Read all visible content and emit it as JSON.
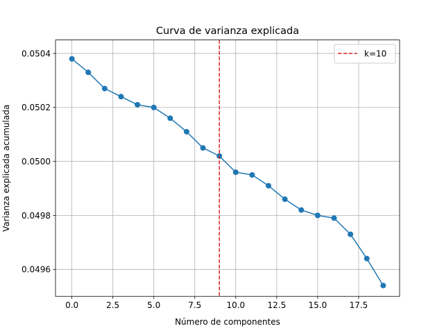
{
  "chart_data": {
    "type": "line",
    "title": "Curva de varianza explicada",
    "xlabel": "Número de componentes",
    "ylabel": "Varianza explicada acumulada",
    "xlim": [
      -1.0,
      20.0
    ],
    "ylim": [
      0.0495,
      0.05045
    ],
    "xticks": [
      0.0,
      2.5,
      5.0,
      7.5,
      10.0,
      12.5,
      15.0,
      17.5
    ],
    "xtick_labels": [
      "0.0",
      "2.5",
      "5.0",
      "7.5",
      "10.0",
      "12.5",
      "15.0",
      "17.5"
    ],
    "yticks": [
      0.0496,
      0.0498,
      0.05,
      0.0502,
      0.0504
    ],
    "ytick_labels": [
      "0.0496",
      "0.0498",
      "0.0500",
      "0.0502",
      "0.0504"
    ],
    "grid": true,
    "series": [
      {
        "color": "#1f77b4",
        "marker": "circle",
        "x": [
          0,
          1,
          2,
          3,
          4,
          5,
          6,
          7,
          8,
          9,
          10,
          11,
          12,
          13,
          14,
          15,
          16,
          17,
          18,
          19
        ],
        "y": [
          0.05038,
          0.05033,
          0.05027,
          0.05024,
          0.05021,
          0.0502,
          0.05016,
          0.05011,
          0.05005,
          0.05002,
          0.04996,
          0.04995,
          0.04991,
          0.04986,
          0.04982,
          0.0498,
          0.04979,
          0.04973,
          0.04964,
          0.04954
        ]
      }
    ],
    "vline": {
      "x": 9,
      "color": "#d62728",
      "style": "dashed",
      "label": "k=10"
    },
    "legend": {
      "placement": "top-right",
      "entries": [
        "k=10"
      ]
    }
  }
}
